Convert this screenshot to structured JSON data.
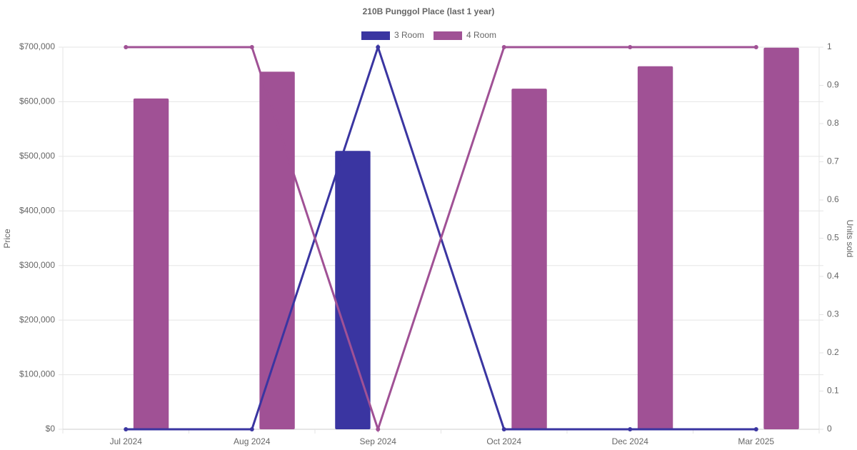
{
  "chart_data": {
    "type": "bar-line",
    "title": "210B Punggol Place (last 1 year)",
    "y_label": "Price",
    "y2_label": "Units sold",
    "categories": [
      "Jul 2024",
      "Aug 2024",
      "Sep 2024",
      "Oct 2024",
      "Dec 2024",
      "Mar 2025"
    ],
    "series": [
      {
        "name": "3 Room",
        "color": "#3a35a1",
        "values": [
          null,
          null,
          510000,
          null,
          null,
          null
        ],
        "units_sold": [
          0,
          0,
          1,
          0,
          0,
          0
        ]
      },
      {
        "name": "4 Room",
        "color": "#a05195",
        "values": [
          606000,
          655000,
          null,
          624000,
          665000,
          699000
        ],
        "units_sold": [
          1,
          1,
          0,
          1,
          1,
          1
        ]
      }
    ],
    "ylim": [
      0,
      700000
    ],
    "yticks": [
      {
        "value": 0,
        "label": "$0"
      },
      {
        "value": 100000,
        "label": "$100,000"
      },
      {
        "value": 200000,
        "label": "$200,000"
      },
      {
        "value": 300000,
        "label": "$300,000"
      },
      {
        "value": 400000,
        "label": "$400,000"
      },
      {
        "value": 500000,
        "label": "$500,000"
      },
      {
        "value": 600000,
        "label": "$600,000"
      },
      {
        "value": 700000,
        "label": "$700,000"
      }
    ],
    "y2lim": [
      0,
      1
    ],
    "y2ticks": [
      0,
      0.1,
      0.2,
      0.3,
      0.4,
      0.5,
      0.6,
      0.7,
      0.8,
      0.9,
      1
    ],
    "grid": true
  }
}
